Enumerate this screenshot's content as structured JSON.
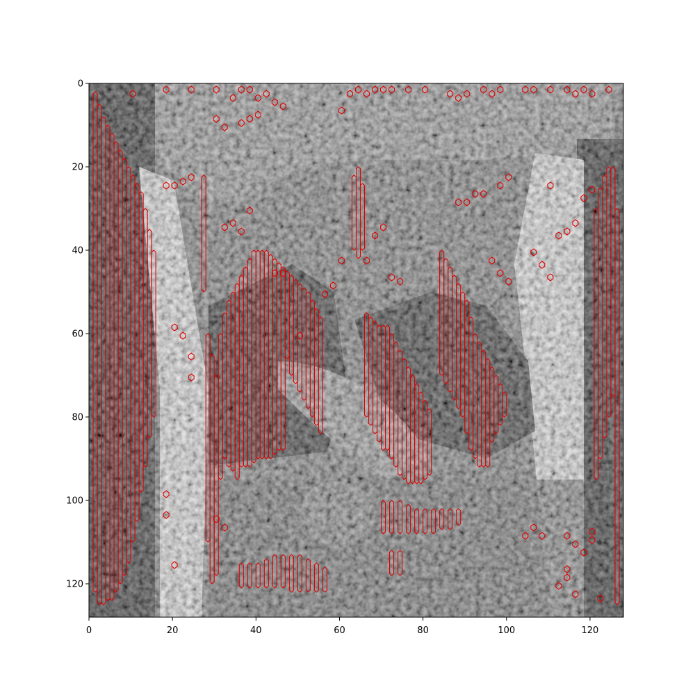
{
  "chart_data": {
    "type": "heatmap",
    "title": "",
    "xlabel": "",
    "ylabel": "",
    "xlim": [
      0,
      128
    ],
    "ylim": [
      128,
      0
    ],
    "x_ticks": [
      "0",
      "20",
      "40",
      "60",
      "80",
      "100",
      "120"
    ],
    "y_ticks": [
      "0",
      "20",
      "40",
      "60",
      "80",
      "100",
      "120"
    ],
    "x_tick_values": [
      0,
      20,
      40,
      60,
      80,
      100,
      120
    ],
    "y_tick_values": [
      0,
      20,
      40,
      60,
      80,
      100,
      120
    ],
    "image": "grayscale MRI slice (coronal view of chest/neck)",
    "grid": false,
    "overlay_color": "#e00000",
    "background_color": "#ffffff"
  }
}
